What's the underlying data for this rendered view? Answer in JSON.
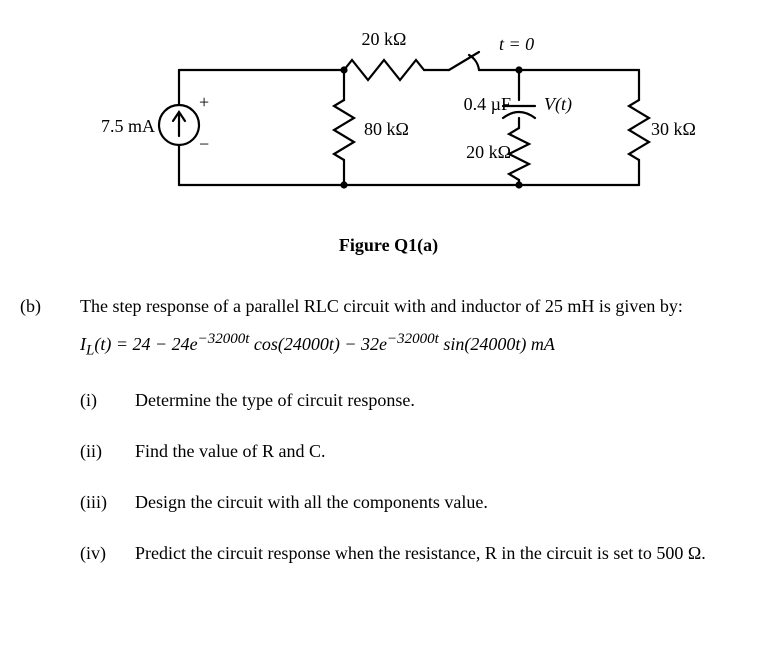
{
  "circuit": {
    "stroke": "#000000",
    "stroke_width": 2.2,
    "font_size": 18,
    "labels": {
      "r_top": "20 kΩ",
      "switch": "t = 0",
      "source": "7.5 mA",
      "r_80": "80 kΩ",
      "cap": "0.4 µF",
      "v_t": "V(t)",
      "r_20": "20 kΩ",
      "r_30": "30 kΩ",
      "plus": "+",
      "minus": "−"
    }
  },
  "figure_caption": "Figure Q1(a)",
  "part_b": {
    "label": "(b)",
    "intro": "The step response of a parallel RLC circuit with and inductor of 25 mH is given by:",
    "equation_html": "I<sub>L</sub>(t) = 24 − 24e<sup>−32000t</sup> cos(24000t) − 32e<sup>−32000t</sup> sin(24000t) mA",
    "items": {
      "i": {
        "label": "(i)",
        "text": "Determine the type of circuit response."
      },
      "ii": {
        "label": "(ii)",
        "text": "Find the value of R and C."
      },
      "iii": {
        "label": "(iii)",
        "text": "Design the circuit with all the components value."
      },
      "iv": {
        "label": "(iv)",
        "text": "Predict the circuit response when the resistance, R in the circuit is set to 500 Ω."
      }
    }
  }
}
